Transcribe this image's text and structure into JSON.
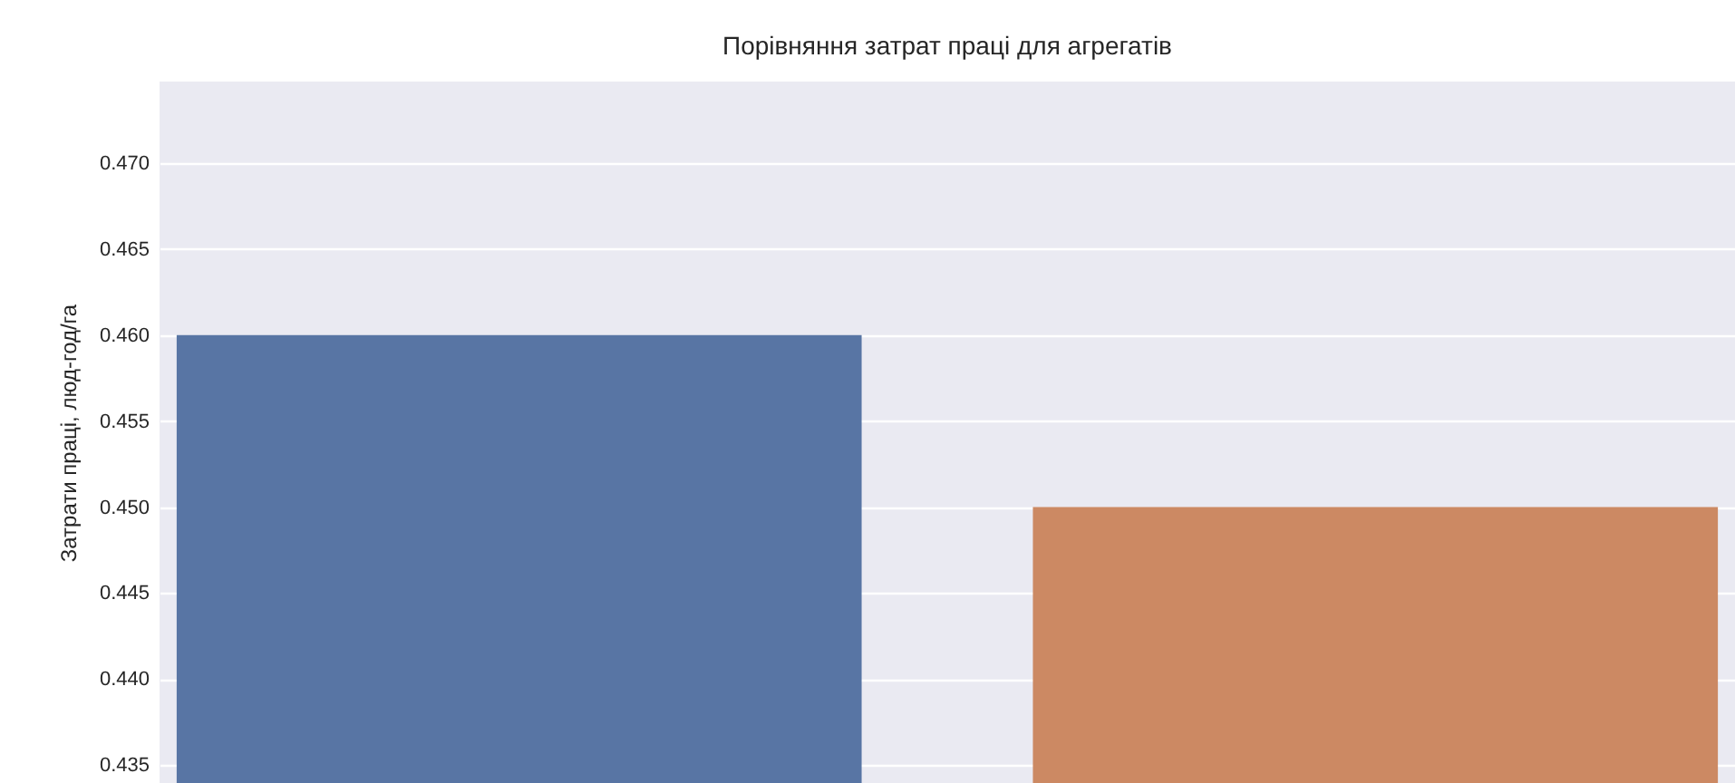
{
  "chart_data": {
    "type": "bar",
    "title": "Порівняння затрат праці для агрегатів",
    "ylabel": "Затрати праці, люд-год/га",
    "categories": [
      null,
      null
    ],
    "values": [
      0.46,
      0.45
    ],
    "colors": [
      "#5875a4",
      "#cc8963"
    ],
    "ylim": [
      0.43395,
      0.47475
    ],
    "yticks": [
      0.435,
      {
        "value": 0.44,
        "label": "0.440"
      },
      0.445,
      {
        "value": 0.45,
        "label": "0.450"
      },
      0.455,
      {
        "value": 0.46,
        "label": "0.460"
      },
      0.465,
      {
        "value": 0.47,
        "label": "0.470"
      }
    ],
    "grid": "y",
    "tick_labels": "y"
  }
}
